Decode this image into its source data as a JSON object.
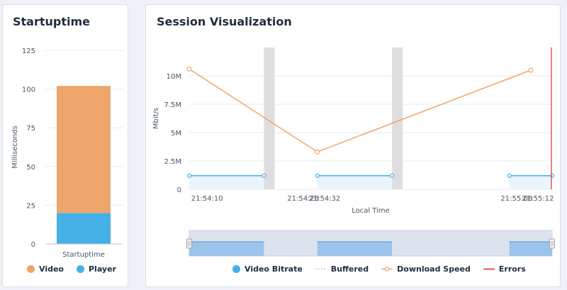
{
  "startup": {
    "title": "Startuptime",
    "ylabel": "Milliseconds",
    "legend": [
      {
        "label": "Video",
        "color": "#eda56a"
      },
      {
        "label": "Player",
        "color": "#45b0e5"
      }
    ]
  },
  "session": {
    "title": "Session Visualization",
    "legend": [
      {
        "label": "Video Bitrate",
        "color": "#45b0e5",
        "icon": "dot"
      },
      {
        "label": "Buffered",
        "color": "#c8c8c8",
        "icon": "dash-line"
      },
      {
        "label": "Download Speed",
        "color": "#eda56a",
        "icon": "line-circle"
      },
      {
        "label": "Errors",
        "color": "#e8545a",
        "icon": "line"
      }
    ]
  },
  "chart_data": [
    {
      "type": "bar",
      "stacked": true,
      "title": "Startuptime",
      "ylabel": "Milliseconds",
      "categories": [
        "Startuptime"
      ],
      "series": [
        {
          "name": "Player",
          "values": [
            20
          ],
          "color": "#45b0e5"
        },
        {
          "name": "Video",
          "values": [
            82
          ],
          "color": "#eda56a"
        }
      ],
      "ylim": [
        0,
        125
      ],
      "yticks": [
        0,
        25,
        50,
        75,
        100,
        125
      ],
      "grid": true,
      "legend": "bottom"
    },
    {
      "type": "line",
      "title": "Session Visualization",
      "xlabel": "Local Time",
      "ylabel": "Mbit/s",
      "xlim": [
        "21:54:04",
        "21:55:12"
      ],
      "ylim": [
        0,
        12.5
      ],
      "yticks": [
        {
          "v": 0,
          "label": "0"
        },
        {
          "v": 2.5,
          "label": "2.5M"
        },
        {
          "v": 5,
          "label": "5M"
        },
        {
          "v": 7.5,
          "label": "7.5M"
        },
        {
          "v": 10,
          "label": "10M"
        }
      ],
      "xticks": [
        "21:54:10",
        "21:54:28",
        "21:54:32",
        "21:55:08",
        "21:55:12"
      ],
      "grid": true,
      "legend": "bottom",
      "series": [
        {
          "name": "Download Speed",
          "color": "#eda56a",
          "points": [
            [
              "21:54:04",
              10.6
            ],
            [
              "21:54:28",
              3.3
            ],
            [
              "21:55:08",
              10.5
            ]
          ]
        },
        {
          "name": "Video Bitrate",
          "color": "#45b0e5",
          "segments": [
            [
              [
                "21:54:04",
                1.2
              ],
              [
                "21:54:18",
                1.2
              ]
            ],
            [
              [
                "21:54:28",
                1.2
              ],
              [
                "21:54:42",
                1.2
              ]
            ],
            [
              [
                "21:55:04",
                1.2
              ],
              [
                "21:55:12",
                1.2
              ]
            ]
          ]
        }
      ],
      "buffered": [
        [
          "21:54:18",
          "21:54:20"
        ],
        [
          "21:54:42",
          "21:54:44"
        ]
      ],
      "errors": [
        "21:55:12"
      ]
    }
  ]
}
